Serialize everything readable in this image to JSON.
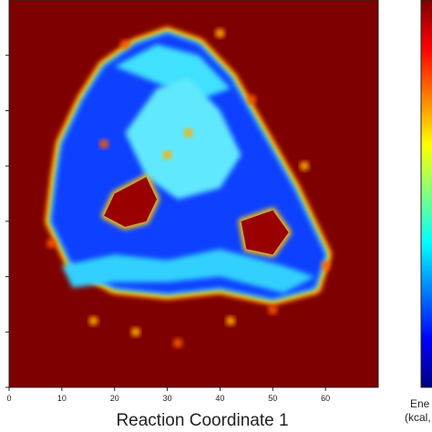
{
  "chart_data": {
    "type": "heatmap",
    "title": "",
    "xlabel": "Reaction Coordinate 1",
    "ylabel": "",
    "xlim": [
      0,
      70
    ],
    "ylim": [
      0,
      70
    ],
    "x_ticks": [
      "0",
      "10",
      "20",
      "30",
      "40",
      "50",
      "60"
    ],
    "colormap": "jet",
    "colorbar": {
      "label_lines": [
        "Ene",
        "(kcal,"
      ],
      "colors": [
        "#7f0000",
        "#ff0000",
        "#ff8000",
        "#ffff00",
        "#80ff80",
        "#00ffff",
        "#0080ff",
        "#0000ff",
        "#00007f"
      ]
    },
    "background_color": "#7f0000",
    "regions": {
      "blue_ring": [
        [
          10,
          44
        ],
        [
          14,
          52
        ],
        [
          18,
          58
        ],
        [
          24,
          62
        ],
        [
          30,
          64
        ],
        [
          36,
          62
        ],
        [
          42,
          56
        ],
        [
          48,
          46
        ],
        [
          54,
          36
        ],
        [
          60,
          24
        ],
        [
          58,
          18
        ],
        [
          50,
          16
        ],
        [
          40,
          18
        ],
        [
          30,
          17
        ],
        [
          20,
          18
        ],
        [
          12,
          22
        ],
        [
          8,
          30
        ],
        [
          9,
          38
        ]
      ],
      "central_cyan": [
        [
          22,
          46
        ],
        [
          28,
          54
        ],
        [
          34,
          56
        ],
        [
          40,
          50
        ],
        [
          44,
          42
        ],
        [
          40,
          36
        ],
        [
          32,
          34
        ],
        [
          26,
          38
        ]
      ],
      "top_cyan_band": [
        [
          20,
          58
        ],
        [
          28,
          62
        ],
        [
          36,
          60
        ],
        [
          42,
          54
        ],
        [
          36,
          52
        ],
        [
          28,
          55
        ]
      ],
      "red_hole_left": [
        [
          20,
          35
        ],
        [
          26,
          38
        ],
        [
          28,
          34
        ],
        [
          26,
          30
        ],
        [
          22,
          29
        ],
        [
          18,
          31
        ]
      ],
      "red_hole_right": [
        [
          44,
          30
        ],
        [
          50,
          32
        ],
        [
          53,
          28
        ],
        [
          50,
          24
        ],
        [
          45,
          25
        ]
      ],
      "lower_cyan_band": [
        [
          10,
          22
        ],
        [
          20,
          24
        ],
        [
          30,
          23
        ],
        [
          40,
          25
        ],
        [
          52,
          22
        ],
        [
          58,
          20
        ],
        [
          52,
          17
        ],
        [
          40,
          20
        ],
        [
          30,
          19
        ],
        [
          20,
          19
        ],
        [
          12,
          18
        ]
      ],
      "orange_spots": [
        [
          22,
          62
        ],
        [
          40,
          64
        ],
        [
          46,
          52
        ],
        [
          30,
          42
        ],
        [
          18,
          44
        ],
        [
          56,
          40
        ],
        [
          8,
          26
        ],
        [
          24,
          10
        ],
        [
          32,
          8
        ],
        [
          42,
          12
        ],
        [
          50,
          14
        ],
        [
          16,
          12
        ],
        [
          60,
          22
        ],
        [
          34,
          46
        ]
      ]
    }
  }
}
